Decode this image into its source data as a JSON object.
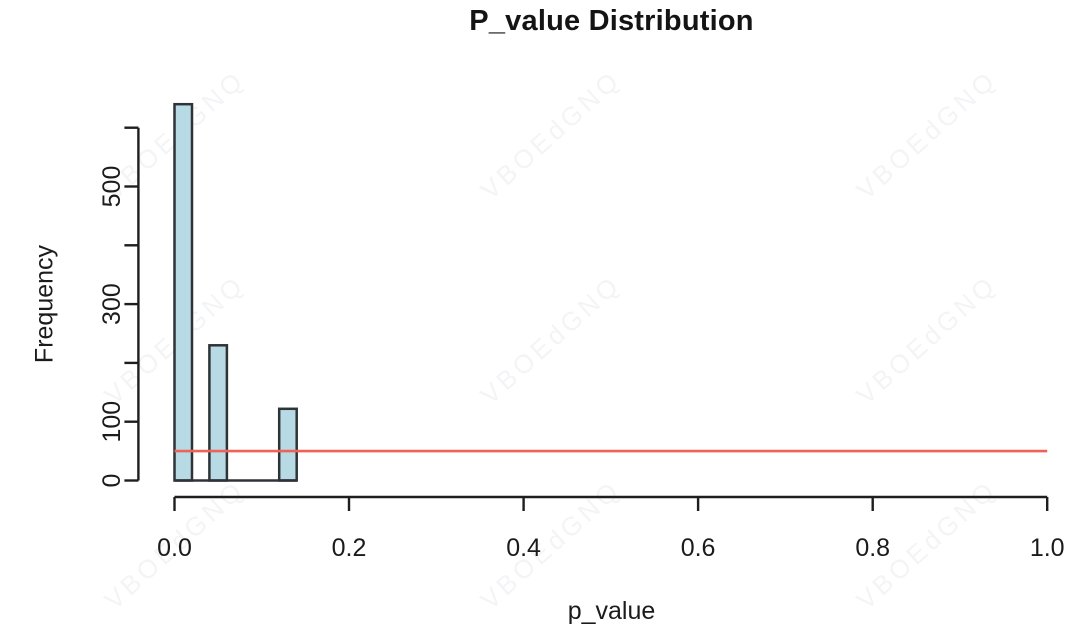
{
  "figure": {
    "title": "P_value Distribution"
  },
  "watermark": {
    "text": "VBOEdGNQ"
  },
  "colors": {
    "background": "#ffffff",
    "bar_fill": "#b8dae4",
    "bar_border": "#2e3338",
    "axis": "#1e1e1e",
    "tick_text": "#1b1b1b",
    "threshold_line": "#ee6355",
    "watermark": "#f3f4f6"
  },
  "chart_data": {
    "type": "bar",
    "subtype": "histogram",
    "title": "P_value Distribution",
    "xlabel": "p_value",
    "ylabel": "Frequency",
    "bin_breaks": [
      0,
      0.02,
      0.04,
      0.06,
      0.08,
      0.1,
      0.12,
      0.14
    ],
    "bin_counts": [
      640,
      0,
      230,
      0,
      0,
      0,
      122
    ],
    "threshold_line_y": 50,
    "x_ticks": [
      0.0,
      0.2,
      0.4,
      0.6,
      0.8,
      1.0
    ],
    "x_tick_labels": [
      "0.0",
      "0.2",
      "0.4",
      "0.6",
      "0.8",
      "1.0"
    ],
    "y_ticks": [
      0,
      100,
      200,
      300,
      400,
      500,
      600
    ],
    "y_tick_labels": [
      "0",
      "100",
      "",
      "300",
      "",
      "500",
      ""
    ],
    "xlim": [
      0,
      1
    ],
    "ylim": [
      0,
      640
    ],
    "grid": "off",
    "legend": "none"
  }
}
